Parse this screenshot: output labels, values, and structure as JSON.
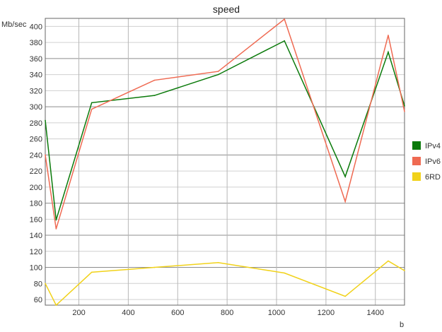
{
  "chart_data": {
    "type": "line",
    "title": "speed",
    "xlabel": "b",
    "ylabel": "Mb/sec",
    "xlim": [
      64,
      1518
    ],
    "ylim": [
      53,
      410
    ],
    "x_ticks": [
      200,
      400,
      600,
      800,
      1000,
      1200,
      1400
    ],
    "y_ticks": [
      60,
      80,
      100,
      120,
      140,
      160,
      180,
      200,
      220,
      240,
      260,
      280,
      300,
      320,
      340,
      360,
      380,
      400
    ],
    "grid": true,
    "legend_position": "right",
    "x": [
      64,
      108,
      252,
      506,
      764,
      1032,
      1278,
      1452,
      1518
    ],
    "series": [
      {
        "name": "IPv4",
        "color": "#0a7a0a",
        "values": [
          283,
          159,
          305,
          314,
          340,
          382,
          213,
          368,
          301
        ]
      },
      {
        "name": "IPv6",
        "color": "#ef6a52",
        "values": [
          240,
          148,
          297,
          333,
          344,
          409,
          182,
          389,
          294
        ]
      },
      {
        "name": "6RD",
        "color": "#f1d21a",
        "values": [
          80,
          53,
          94,
          100,
          106,
          93,
          64,
          108,
          96
        ]
      }
    ]
  }
}
